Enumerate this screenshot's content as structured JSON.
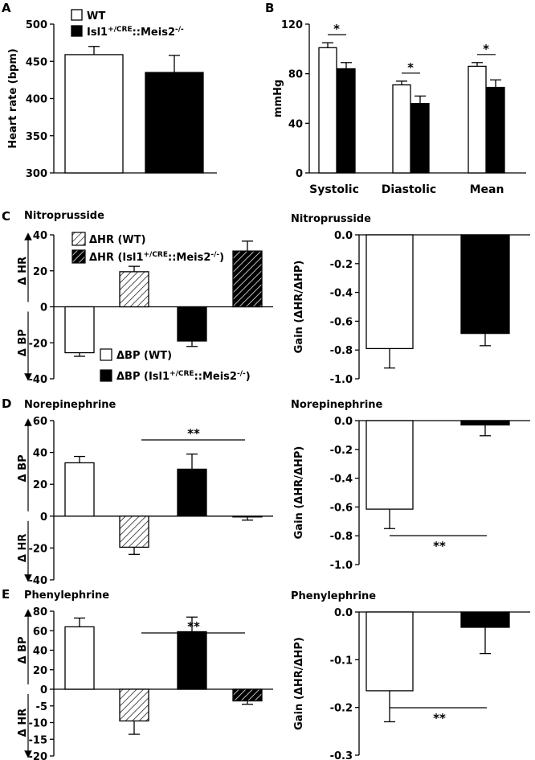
{
  "colors": {
    "wt": "#ffffff",
    "ko": "#000000",
    "stroke": "#000000"
  },
  "chart_data": [
    {
      "id": "A",
      "panel": "A",
      "type": "bar",
      "ylabel": "Heart rate (bpm)",
      "ylim": [
        300,
        500
      ],
      "yticks": [
        "500",
        "450",
        "400",
        "350",
        "300"
      ],
      "legend": {
        "wt": "WT",
        "ko": "Isl1+/CRE::Meis2-/-"
      },
      "series": [
        {
          "name": "WT",
          "values": [
            459
          ],
          "errors": [
            11
          ]
        },
        {
          "name": "Isl1+/CRE::Meis2-/-",
          "values": [
            435
          ],
          "errors": [
            23
          ]
        }
      ]
    },
    {
      "id": "B",
      "panel": "B",
      "type": "bar",
      "ylabel": "mmHg",
      "ylim": [
        0,
        120
      ],
      "yticks": [
        "120",
        "80",
        "40",
        "0"
      ],
      "categories": [
        "Systolic",
        "Diastolic",
        "Mean"
      ],
      "series": [
        {
          "name": "WT",
          "values": [
            101,
            71,
            86
          ],
          "errors": [
            4,
            3,
            3
          ]
        },
        {
          "name": "Isl1+/CRE::Meis2-/-",
          "values": [
            84,
            56,
            69
          ],
          "errors": [
            5,
            6,
            6
          ]
        }
      ],
      "significance": [
        "*",
        "*",
        "*"
      ]
    },
    {
      "id": "C1",
      "panel": "C",
      "type": "bar",
      "title": "Nitroprusside",
      "ylim": [
        -40,
        40
      ],
      "yticks": [
        "40",
        "20",
        "0",
        "-20",
        "-40"
      ],
      "axis_up": "Δ HR",
      "axis_down": "Δ BP",
      "legend_hr": {
        "wt": "ΔHR (WT)",
        "ko": "ΔHR (Isl1+/CRE::Meis2-/-)"
      },
      "legend_bp": {
        "wt": "ΔBP (WT)",
        "ko": "ΔBP (Isl1+/CRE::Meis2-/-)"
      },
      "bars": [
        {
          "series": "ΔBP (WT)",
          "value": -25.5,
          "error": 2
        },
        {
          "series": "ΔHR (WT)",
          "value": 19.5,
          "error": 3
        },
        {
          "series": "ΔBP (Isl1+/CRE::Meis2-/-)",
          "value": -19,
          "error": 3
        },
        {
          "series": "ΔHR (Isl1+/CRE::Meis2-/-)",
          "value": 31,
          "error": 5.5
        }
      ]
    },
    {
      "id": "C2",
      "panel": "",
      "type": "bar",
      "title": "Nitroprusside",
      "ylabel": "Gain (ΔHR/ΔHP)",
      "ylim": [
        -1.0,
        0.0
      ],
      "yticks": [
        "0.0",
        "-0.2",
        "-0.4",
        "-0.6",
        "-0.8",
        "-1.0"
      ],
      "series": [
        {
          "name": "WT",
          "values": [
            -0.79
          ],
          "errors": [
            0.135
          ]
        },
        {
          "name": "Isl1+/CRE::Meis2-/-",
          "values": [
            -0.685
          ],
          "errors": [
            0.085
          ]
        }
      ]
    },
    {
      "id": "D1",
      "panel": "D",
      "type": "bar",
      "title": "Norepinephrine",
      "ylim": [
        -40,
        60
      ],
      "yticks": [
        "60",
        "40",
        "20",
        "0",
        "-20",
        "-40"
      ],
      "axis_up": "Δ BP",
      "axis_down": "Δ HR",
      "bars": [
        {
          "series": "ΔBP (WT)",
          "value": 33.5,
          "error": 4
        },
        {
          "series": "ΔHR (WT)",
          "value": -19.5,
          "error": 4.5
        },
        {
          "series": "ΔBP (Isl1+/CRE::Meis2-/-)",
          "value": 29.5,
          "error": 9.5
        },
        {
          "series": "ΔHR (Isl1+/CRE::Meis2-/-)",
          "value": -0.5,
          "error": 2
        }
      ],
      "significance": "**"
    },
    {
      "id": "D2",
      "panel": "",
      "type": "bar",
      "title": "Norepinephrine",
      "ylabel": "Gain (ΔHR/ΔHP)",
      "ylim": [
        -1.0,
        0.0
      ],
      "yticks": [
        "0.0",
        "-0.2",
        "-0.4",
        "-0.6",
        "-0.8",
        "-1.0"
      ],
      "series": [
        {
          "name": "WT",
          "values": [
            -0.615
          ],
          "errors": [
            0.135
          ]
        },
        {
          "name": "Isl1+/CRE::Meis2-/-",
          "values": [
            -0.03
          ],
          "errors": [
            0.075
          ]
        }
      ],
      "significance": "**"
    },
    {
      "id": "E1",
      "panel": "E",
      "type": "bar",
      "title": "Phenylephrine",
      "ylim": [
        -20,
        80
      ],
      "yticks": [
        "80",
        "60",
        "40",
        "20",
        "0",
        "-5",
        "-10",
        "-15",
        "-20"
      ],
      "axis_up": "Δ BP",
      "axis_down": "Δ HR",
      "bars": [
        {
          "series": "ΔBP (WT)",
          "value": 64,
          "error": 9
        },
        {
          "series": "ΔHR (WT)",
          "value": -9.5,
          "error": 4
        },
        {
          "series": "ΔBP (Isl1+/CRE::Meis2-/-)",
          "value": 59,
          "error": 15
        },
        {
          "series": "ΔHR (Isl1+/CRE::Meis2-/-)",
          "value": -3.5,
          "error": 1
        }
      ],
      "significance": "**"
    },
    {
      "id": "E2",
      "panel": "",
      "type": "bar",
      "title": "Phenylephrine",
      "ylabel": "Gain (ΔHR/ΔHP)",
      "ylim": [
        -0.3,
        0.0
      ],
      "yticks": [
        "0.0",
        "-0.1",
        "-0.2",
        "-0.3"
      ],
      "series": [
        {
          "name": "WT",
          "values": [
            -0.165
          ],
          "errors": [
            0.065
          ]
        },
        {
          "name": "Isl1+/CRE::Meis2-/-",
          "values": [
            -0.032
          ],
          "errors": [
            0.055
          ]
        }
      ],
      "significance": "**"
    }
  ]
}
